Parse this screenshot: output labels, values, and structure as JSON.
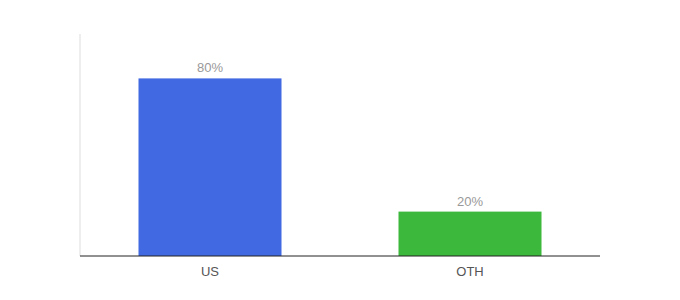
{
  "chart_data": {
    "type": "bar",
    "categories": [
      "US",
      "OTH"
    ],
    "values": [
      80,
      20
    ],
    "colors": [
      "#4169E1",
      "#3CB83C"
    ],
    "ylim": [
      0,
      100
    ],
    "data_labels": true,
    "value_labels": [
      "80%",
      "20%"
    ],
    "tick_labels": "x"
  }
}
